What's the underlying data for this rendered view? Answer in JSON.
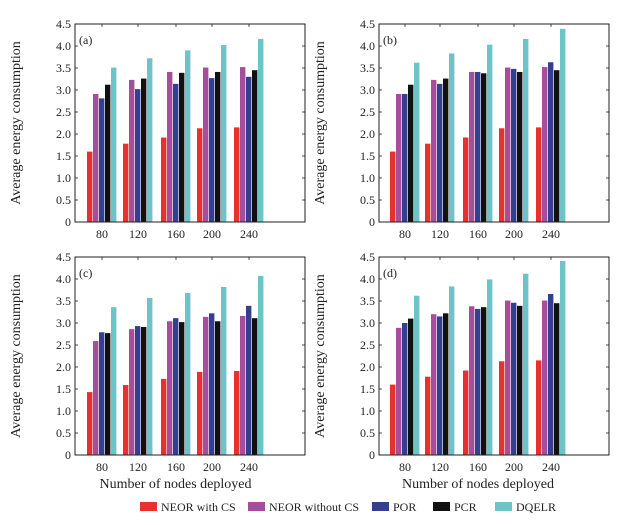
{
  "chart_data": [
    {
      "type": "bar",
      "panel_label": "(a)",
      "categories": [
        "80",
        "120",
        "160",
        "200",
        "240"
      ],
      "xlabel": "",
      "ylabel": "Average energy consumption",
      "ylim": [
        0,
        4.5
      ],
      "yticks": [
        "0",
        "0.5",
        "1.0",
        "1.5",
        "2.0",
        "2.5",
        "3.0",
        "3.5",
        "4.0",
        "4.5"
      ],
      "series": [
        {
          "name": "NEOR with CS",
          "values": [
            1.6,
            1.78,
            1.92,
            2.13,
            2.15
          ]
        },
        {
          "name": "NEOR without CS",
          "values": [
            2.91,
            3.23,
            3.41,
            3.51,
            3.52
          ]
        },
        {
          "name": "POR",
          "values": [
            2.81,
            3.02,
            3.14,
            3.27,
            3.3
          ]
        },
        {
          "name": "PCR",
          "values": [
            3.12,
            3.26,
            3.39,
            3.41,
            3.45
          ]
        },
        {
          "name": "DQELR",
          "values": [
            3.51,
            3.72,
            3.9,
            4.02,
            4.16
          ]
        }
      ]
    },
    {
      "type": "bar",
      "panel_label": "(b)",
      "categories": [
        "80",
        "120",
        "160",
        "200",
        "240"
      ],
      "xlabel": "",
      "ylabel": "Average energy consumption",
      "ylim": [
        0,
        4.5
      ],
      "yticks": [
        "0",
        "0.5",
        "1.0",
        "1.5",
        "2.0",
        "2.5",
        "3.0",
        "3.5",
        "4.0",
        "4.5"
      ],
      "series": [
        {
          "name": "NEOR with CS",
          "values": [
            1.6,
            1.78,
            1.92,
            2.13,
            2.15
          ]
        },
        {
          "name": "NEOR without CS",
          "values": [
            2.91,
            3.23,
            3.41,
            3.51,
            3.52
          ]
        },
        {
          "name": "POR",
          "values": [
            2.91,
            3.14,
            3.41,
            3.48,
            3.63
          ]
        },
        {
          "name": "PCR",
          "values": [
            3.12,
            3.26,
            3.38,
            3.41,
            3.45
          ]
        },
        {
          "name": "DQELR",
          "values": [
            3.62,
            3.83,
            4.03,
            4.16,
            4.39
          ]
        }
      ]
    },
    {
      "type": "bar",
      "panel_label": "(c)",
      "categories": [
        "80",
        "120",
        "160",
        "200",
        "240"
      ],
      "xlabel": "Number of nodes deployed",
      "ylabel": "Average energy consumption",
      "ylim": [
        0,
        4.5
      ],
      "yticks": [
        "0",
        "0.5",
        "1.0",
        "1.5",
        "2.0",
        "2.5",
        "3.0",
        "3.5",
        "4.0",
        "4.5"
      ],
      "series": [
        {
          "name": "NEOR with CS",
          "values": [
            1.43,
            1.59,
            1.73,
            1.89,
            1.91
          ]
        },
        {
          "name": "NEOR without CS",
          "values": [
            2.59,
            2.86,
            3.04,
            3.14,
            3.16
          ]
        },
        {
          "name": "POR",
          "values": [
            2.79,
            2.93,
            3.11,
            3.22,
            3.39
          ]
        },
        {
          "name": "PCR",
          "values": [
            2.77,
            2.91,
            3.02,
            3.04,
            3.11
          ]
        },
        {
          "name": "DQELR",
          "values": [
            3.36,
            3.57,
            3.68,
            3.82,
            4.07
          ]
        }
      ]
    },
    {
      "type": "bar",
      "panel_label": "(d)",
      "categories": [
        "80",
        "120",
        "160",
        "200",
        "240"
      ],
      "xlabel": "Number of nodes deployed",
      "ylabel": "Average energy consumption",
      "ylim": [
        0,
        4.5
      ],
      "yticks": [
        "0",
        "0.5",
        "1.0",
        "1.5",
        "2.0",
        "2.5",
        "3.0",
        "3.5",
        "4.0",
        "4.5"
      ],
      "series": [
        {
          "name": "NEOR with CS",
          "values": [
            1.6,
            1.78,
            1.92,
            2.13,
            2.15
          ]
        },
        {
          "name": "NEOR without CS",
          "values": [
            2.89,
            3.2,
            3.38,
            3.51,
            3.51
          ]
        },
        {
          "name": "POR",
          "values": [
            3.0,
            3.15,
            3.32,
            3.46,
            3.66
          ]
        },
        {
          "name": "PCR",
          "values": [
            3.1,
            3.22,
            3.36,
            3.39,
            3.45
          ]
        },
        {
          "name": "DQELR",
          "values": [
            3.62,
            3.83,
            3.99,
            4.12,
            4.41
          ]
        }
      ]
    }
  ],
  "legend": {
    "placement": "bottom-center",
    "items": [
      {
        "label": "NEOR with CS",
        "color": "#e8302e"
      },
      {
        "label": "NEOR without CS",
        "color": "#a64d9c"
      },
      {
        "label": "POR",
        "color": "#343f8f"
      },
      {
        "label": "PCR",
        "color": "#111111"
      },
      {
        "label": "DQELR",
        "color": "#6cc3c8"
      }
    ]
  }
}
